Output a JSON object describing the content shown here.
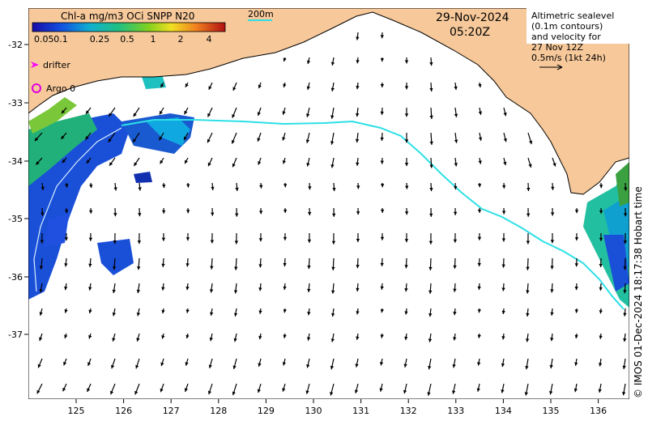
{
  "title": {
    "colorbar": "Chl-a mg/m3 OCi SNPP N20",
    "date": "29-Nov-2024",
    "time": "05:20Z"
  },
  "contour_label": "200m",
  "info_box": {
    "lines": [
      "Altimetric sealevel",
      "(0.1m contours)",
      "and velocity for",
      "27 Nov 12Z",
      "0.5m/s (1kt 24h)"
    ]
  },
  "legend": {
    "drifter": "drifter",
    "argo": "Argo 0"
  },
  "credit": "© IMOS 01-Dec-2024 18:17:38 Hobart time",
  "colorbar_ticks": [
    "0.05",
    "0.1",
    "0.25",
    "0.5",
    "1",
    "2",
    "4"
  ],
  "lat_ticks": [
    "-32",
    "-33",
    "-34",
    "-35",
    "-36",
    "-37"
  ],
  "lon_ticks": [
    "125",
    "126",
    "127",
    "128",
    "129",
    "130",
    "131",
    "132",
    "133",
    "134",
    "135",
    "136"
  ],
  "colors": {
    "land": "#f6c89a",
    "ocean": "#ffffff",
    "contour": "#2de0e6",
    "drifter": "#ff00ff",
    "argo": "#e000e0"
  }
}
